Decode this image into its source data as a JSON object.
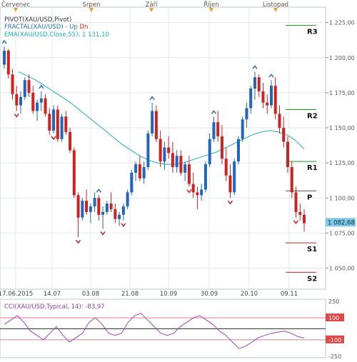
{
  "top_month_labels": [
    "Červenec",
    "Srpen",
    "Září",
    "Říjen",
    "Listopad"
  ],
  "legend": {
    "pivot": "PIVOT(XAU/USD,Pivot)",
    "fractal_prefix": "FRACTAL(XAU/USD)  - ",
    "fractal_up": "Up",
    "fractal_dn": "Dn",
    "ema": "EMA(XAU/USD,Close,55): 1 131,10"
  },
  "price_axis": {
    "ticks": [
      "1 225,00",
      "1 200,00",
      "1 175,00",
      "1 150,00",
      "1 125,00",
      "1 100,00",
      "1 075,00",
      "1 050,00"
    ],
    "current_price": "1 082,68"
  },
  "date_axis": [
    "17.06.2015",
    "14.07",
    "03.08",
    "21.08",
    "10.09",
    "30.09",
    "20.10",
    "09.11"
  ],
  "pivot_levels": [
    {
      "label": "R3",
      "price": 1223,
      "color": "#1a9a1a"
    },
    {
      "label": "R2",
      "price": 1163,
      "color": "#1a9a1a"
    },
    {
      "label": "R1",
      "price": 1126,
      "color": "#1a9a1a"
    },
    {
      "label": "P",
      "price": 1105,
      "color": "#555555"
    },
    {
      "label": "S1",
      "price": 1068,
      "color": "#cc2222"
    },
    {
      "label": "S2",
      "price": 1047,
      "color": "#cc2222"
    }
  ],
  "cci": {
    "legend": "CCI(XAU/USD,Typical, 14): -83,97",
    "ticks": [
      "250",
      "100",
      "-100",
      "-250"
    ],
    "highlighted": [
      "100",
      "-100"
    ]
  },
  "chart_data": {
    "type": "candlestick",
    "ylim": [
      1036,
      1235
    ],
    "candles": [
      [
        1195,
        1208,
        1192,
        1205
      ],
      [
        1205,
        1206,
        1185,
        1188
      ],
      [
        1188,
        1192,
        1170,
        1174
      ],
      [
        1174,
        1180,
        1162,
        1166
      ],
      [
        1166,
        1176,
        1160,
        1172
      ],
      [
        1172,
        1186,
        1170,
        1184
      ],
      [
        1184,
        1188,
        1172,
        1175
      ],
      [
        1175,
        1180,
        1160,
        1162
      ],
      [
        1162,
        1170,
        1155,
        1168
      ],
      [
        1168,
        1176,
        1162,
        1171
      ],
      [
        1171,
        1174,
        1158,
        1160
      ],
      [
        1160,
        1164,
        1145,
        1148
      ],
      [
        1148,
        1166,
        1146,
        1163
      ],
      [
        1163,
        1166,
        1140,
        1142
      ],
      [
        1142,
        1160,
        1140,
        1158
      ],
      [
        1158,
        1162,
        1145,
        1147
      ],
      [
        1147,
        1150,
        1132,
        1134
      ],
      [
        1134,
        1136,
        1100,
        1102
      ],
      [
        1102,
        1104,
        1072,
        1086
      ],
      [
        1086,
        1100,
        1084,
        1098
      ],
      [
        1098,
        1106,
        1088,
        1090
      ],
      [
        1090,
        1096,
        1082,
        1094
      ],
      [
        1094,
        1104,
        1090,
        1100
      ],
      [
        1100,
        1102,
        1084,
        1088
      ],
      [
        1088,
        1094,
        1078,
        1090
      ],
      [
        1090,
        1098,
        1088,
        1096
      ],
      [
        1096,
        1104,
        1090,
        1092
      ],
      [
        1092,
        1096,
        1082,
        1085
      ],
      [
        1085,
        1090,
        1080,
        1088
      ],
      [
        1088,
        1096,
        1084,
        1094
      ],
      [
        1094,
        1106,
        1092,
        1104
      ],
      [
        1104,
        1120,
        1102,
        1118
      ],
      [
        1118,
        1126,
        1112,
        1124
      ],
      [
        1124,
        1130,
        1112,
        1114
      ],
      [
        1114,
        1126,
        1110,
        1122
      ],
      [
        1122,
        1148,
        1120,
        1146
      ],
      [
        1146,
        1168,
        1144,
        1162
      ],
      [
        1162,
        1166,
        1140,
        1142
      ],
      [
        1142,
        1148,
        1122,
        1126
      ],
      [
        1126,
        1140,
        1120,
        1136
      ],
      [
        1136,
        1144,
        1128,
        1132
      ],
      [
        1132,
        1140,
        1118,
        1122
      ],
      [
        1122,
        1134,
        1118,
        1130
      ],
      [
        1130,
        1134,
        1116,
        1118
      ],
      [
        1118,
        1126,
        1112,
        1124
      ],
      [
        1124,
        1130,
        1108,
        1110
      ],
      [
        1110,
        1118,
        1100,
        1104
      ],
      [
        1104,
        1108,
        1092,
        1102
      ],
      [
        1102,
        1110,
        1098,
        1106
      ],
      [
        1106,
        1126,
        1104,
        1124
      ],
      [
        1124,
        1146,
        1122,
        1142
      ],
      [
        1142,
        1158,
        1140,
        1154
      ],
      [
        1154,
        1162,
        1140,
        1144
      ],
      [
        1144,
        1152,
        1124,
        1128
      ],
      [
        1128,
        1136,
        1112,
        1116
      ],
      [
        1116,
        1124,
        1100,
        1104
      ],
      [
        1104,
        1128,
        1102,
        1126
      ],
      [
        1126,
        1144,
        1124,
        1142
      ],
      [
        1142,
        1158,
        1140,
        1156
      ],
      [
        1156,
        1168,
        1150,
        1164
      ],
      [
        1164,
        1180,
        1160,
        1178
      ],
      [
        1178,
        1190,
        1170,
        1186
      ],
      [
        1186,
        1188,
        1172,
        1176
      ],
      [
        1176,
        1182,
        1164,
        1168
      ],
      [
        1168,
        1174,
        1160,
        1166
      ],
      [
        1166,
        1184,
        1164,
        1180
      ],
      [
        1180,
        1186,
        1156,
        1160
      ],
      [
        1160,
        1166,
        1146,
        1150
      ],
      [
        1150,
        1158,
        1136,
        1140
      ],
      [
        1140,
        1144,
        1118,
        1122
      ],
      [
        1122,
        1126,
        1100,
        1104
      ],
      [
        1104,
        1108,
        1086,
        1090
      ],
      [
        1090,
        1096,
        1084,
        1088
      ],
      [
        1088,
        1092,
        1076,
        1082
      ]
    ],
    "fractals_up": [
      0,
      9,
      23,
      36,
      51,
      61,
      65
    ],
    "fractals_down": [
      3,
      12,
      18,
      24,
      29,
      45,
      55,
      71
    ],
    "ema": [
      1190,
      1187,
      1184,
      1180,
      1176,
      1172,
      1168,
      1163,
      1158,
      1153,
      1148,
      1143,
      1138,
      1134,
      1130,
      1127,
      1125,
      1124,
      1124,
      1125,
      1127,
      1129,
      1131,
      1133,
      1136,
      1139,
      1142,
      1145,
      1147,
      1148,
      1147,
      1145,
      1141,
      1135
    ],
    "cci_values": [
      40,
      80,
      120,
      60,
      -20,
      -60,
      -100,
      -40,
      20,
      -60,
      -120,
      -80,
      -40,
      60,
      100,
      40,
      -40,
      -60,
      -40,
      60,
      120,
      140,
      80,
      20,
      -40,
      -60,
      -40,
      20,
      60,
      100,
      120,
      80,
      40,
      -20,
      -60,
      -120,
      -180,
      -160,
      -120,
      -80,
      -60,
      -40,
      -30,
      -20,
      -40,
      -70,
      -84
    ]
  }
}
